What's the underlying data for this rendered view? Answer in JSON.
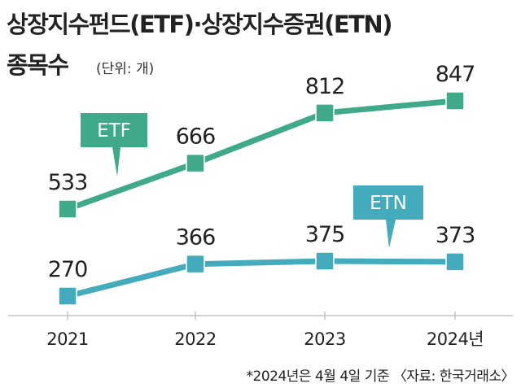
{
  "chart_data": {
    "type": "line",
    "title_line1": "상장지수펀드(ETF)·상장지수증권(ETN)",
    "title_line2": "종목수",
    "unit": "(단위: 개)",
    "categories": [
      "2021",
      "2022",
      "2023",
      "2024년"
    ],
    "series": [
      {
        "name": "ETF",
        "values": [
          533,
          666,
          812,
          847
        ],
        "color": "#3fa98a"
      },
      {
        "name": "ETN",
        "values": [
          270,
          366,
          375,
          373
        ],
        "color": "#44abbc"
      }
    ],
    "footnote": "*2024년은 4월 4일 기준 〈자료: 한국거래소〉",
    "grid": false,
    "legend": "callout labels"
  }
}
